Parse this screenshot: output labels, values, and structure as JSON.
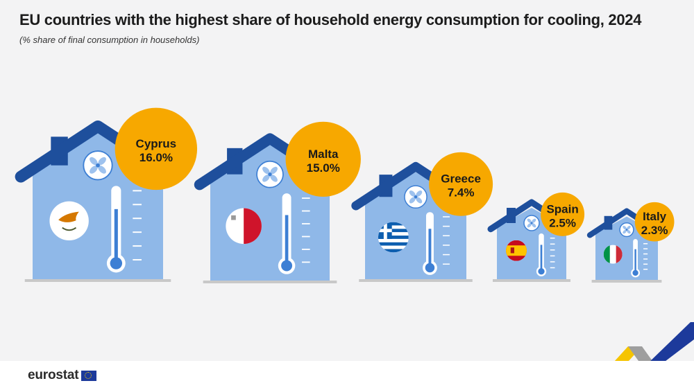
{
  "title": "EU countries with the highest share of household energy consumption for cooling, 2024",
  "subtitle": "(% share of final consumption in households)",
  "footer": {
    "brand": "eurostat"
  },
  "colors": {
    "roof": "#1e4f9c",
    "wall": "#8fb8e8",
    "badge": "#f7a800",
    "thermometer": "#3d7fd4",
    "ground": "#c8c8c8",
    "ribbon_yellow": "#f5c400",
    "ribbon_blue": "#1d3a9b"
  },
  "chart_data": {
    "type": "bar",
    "categories": [
      "Cyprus",
      "Malta",
      "Greece",
      "Spain",
      "Italy"
    ],
    "values": [
      16.0,
      15.0,
      7.4,
      2.5,
      2.3
    ],
    "value_labels": [
      "16.0%",
      "15.0%",
      "7.4%",
      "2.5%",
      "2.3%"
    ],
    "flags": [
      "cyprus-flag",
      "malta-flag",
      "greece-flag",
      "spain-flag",
      "italy-flag"
    ],
    "encoding": "house size",
    "unit": "%",
    "title": "EU countries with the highest share of household energy consumption for cooling, 2024",
    "subtitle": "(% share of final consumption in households)",
    "xlabel": "",
    "ylabel": "",
    "legend": "none",
    "grid": false
  }
}
